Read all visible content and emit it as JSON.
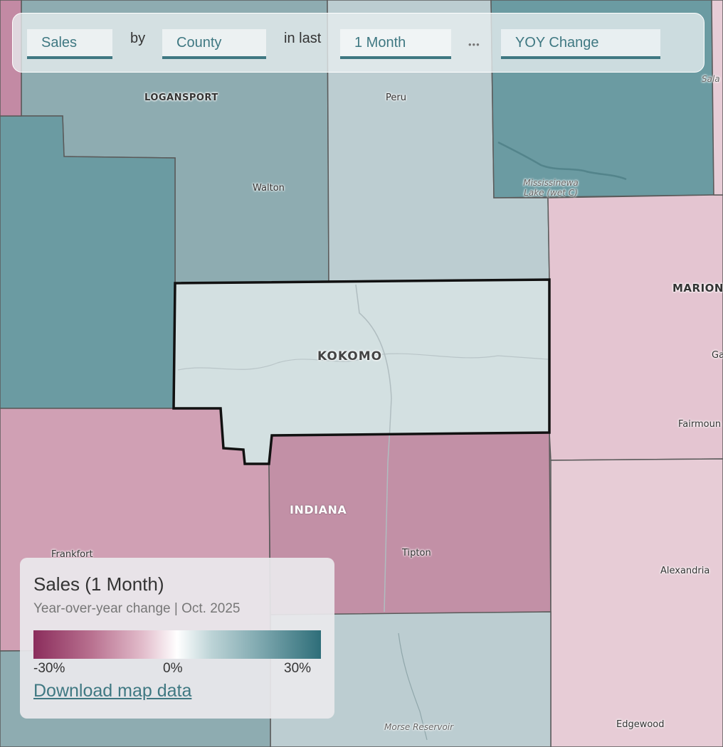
{
  "query": {
    "metric": "Sales",
    "by_text": "by",
    "geography": "County",
    "in_last_text": "in last",
    "period": "1 Month",
    "more": "•••",
    "mode": "YOY Change"
  },
  "map_labels": {
    "logansport": "LOGANSPORT",
    "peru": "Peru",
    "sala": "Sala",
    "walton": "Walton",
    "lake": "Mississinewa Lake (wet C)",
    "marion": "MARION",
    "kokomo": "KOKOMO",
    "ga": "Ga",
    "fairmount": "Fairmoun",
    "indiana": "INDIANA",
    "tipton": "Tipton",
    "frankfort": "Frankfort",
    "alexandria": "Alexandria",
    "morse": "Morse Reservoir",
    "edgewood": "Edgewood"
  },
  "colors": {
    "teal_dark": "#6b9ba2",
    "teal_mid": "#8eacb1",
    "teal_light": "#bccdd1",
    "highlight": "#d3e0e1",
    "pink_light": "#e4c5d1",
    "pink_pale": "#e7ccd6",
    "pink_mid": "#d0a0b4",
    "pink_strong": "#c290a6",
    "plum_edge": "#c38aa4",
    "border": "#5a5a5a",
    "accent": "#3f7882"
  },
  "legend": {
    "title": "Sales (1 Month)",
    "subtitle": "Year-over-year change | Oct. 2025",
    "scale": [
      "-30%",
      "0%",
      "30%"
    ],
    "download": "Download map data"
  }
}
